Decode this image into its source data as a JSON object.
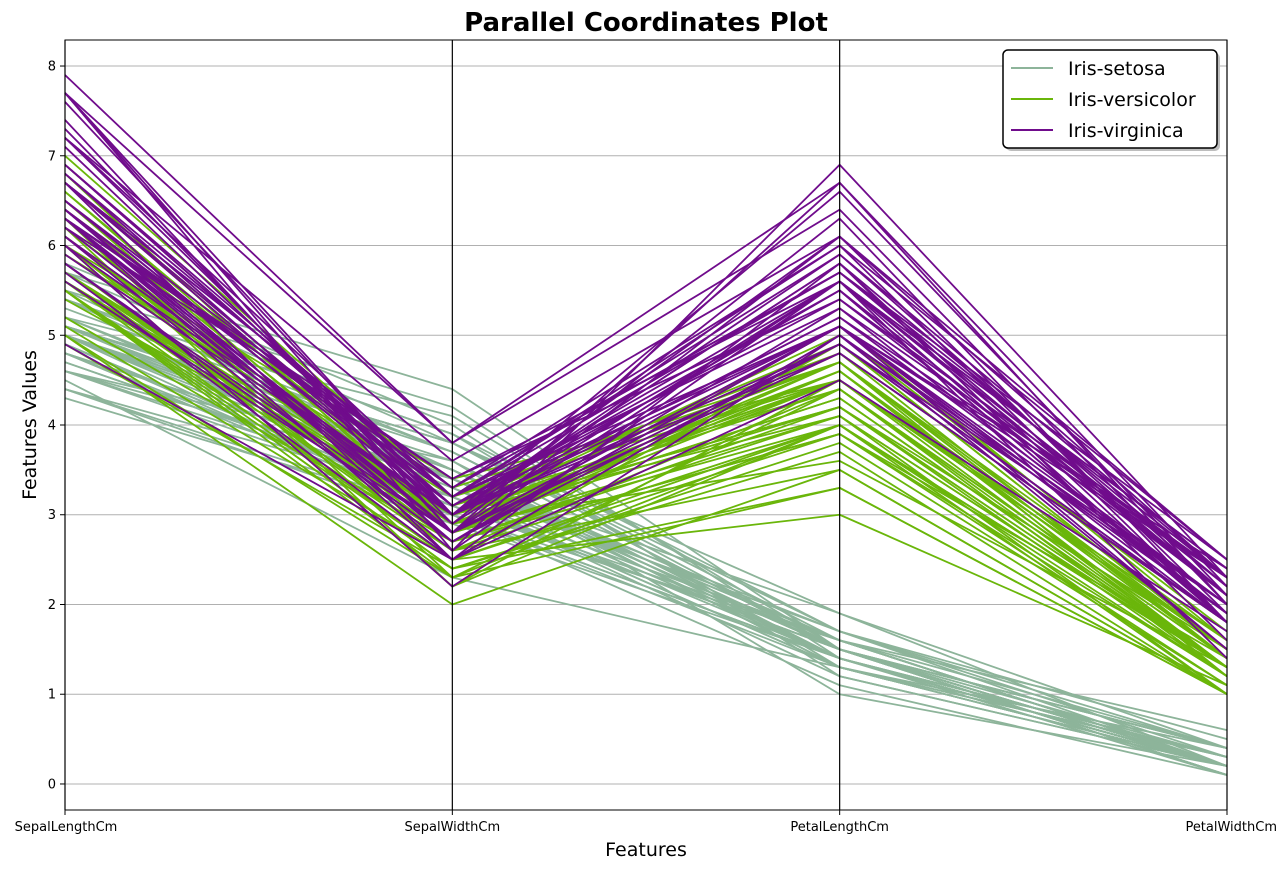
{
  "chart_data": {
    "type": "line",
    "subtype": "parallel-coordinates",
    "title": "Parallel Coordinates Plot",
    "xlabel": "Features",
    "ylabel": "Features Values",
    "categories": [
      "SepalLengthCm",
      "SepalWidthCm",
      "PetalLengthCm",
      "PetalWidthCm"
    ],
    "y_ticks": [
      0,
      1,
      2,
      3,
      4,
      5,
      6,
      7,
      8
    ],
    "ylim": [
      -0.29,
      8.29
    ],
    "grid": true,
    "legend_position": "top-right",
    "colors": {
      "Iris-setosa": "#8db49a",
      "Iris-versicolor": "#6ab60a",
      "Iris-virginica": "#700c8c"
    },
    "series": [
      {
        "name": "Iris-setosa",
        "rows": [
          [
            5.1,
            3.5,
            1.4,
            0.2
          ],
          [
            4.9,
            3.0,
            1.4,
            0.2
          ],
          [
            4.7,
            3.2,
            1.3,
            0.2
          ],
          [
            4.6,
            3.1,
            1.5,
            0.2
          ],
          [
            5.0,
            3.6,
            1.4,
            0.2
          ],
          [
            5.4,
            3.9,
            1.7,
            0.4
          ],
          [
            4.6,
            3.4,
            1.4,
            0.3
          ],
          [
            5.0,
            3.4,
            1.5,
            0.2
          ],
          [
            4.4,
            2.9,
            1.4,
            0.2
          ],
          [
            4.9,
            3.1,
            1.5,
            0.1
          ],
          [
            5.4,
            3.7,
            1.5,
            0.2
          ],
          [
            4.8,
            3.4,
            1.6,
            0.2
          ],
          [
            4.8,
            3.0,
            1.4,
            0.1
          ],
          [
            4.3,
            3.0,
            1.1,
            0.1
          ],
          [
            5.8,
            4.0,
            1.2,
            0.2
          ],
          [
            5.7,
            4.4,
            1.5,
            0.4
          ],
          [
            5.4,
            3.9,
            1.3,
            0.4
          ],
          [
            5.1,
            3.5,
            1.4,
            0.3
          ],
          [
            5.7,
            3.8,
            1.7,
            0.3
          ],
          [
            5.1,
            3.8,
            1.5,
            0.3
          ],
          [
            5.4,
            3.4,
            1.7,
            0.2
          ],
          [
            5.1,
            3.7,
            1.5,
            0.4
          ],
          [
            4.6,
            3.6,
            1.0,
            0.2
          ],
          [
            5.1,
            3.3,
            1.7,
            0.5
          ],
          [
            4.8,
            3.4,
            1.9,
            0.2
          ],
          [
            5.0,
            3.0,
            1.6,
            0.2
          ],
          [
            5.0,
            3.4,
            1.6,
            0.4
          ],
          [
            5.2,
            3.5,
            1.5,
            0.2
          ],
          [
            5.2,
            3.4,
            1.4,
            0.2
          ],
          [
            4.7,
            3.2,
            1.6,
            0.2
          ],
          [
            4.8,
            3.1,
            1.6,
            0.2
          ],
          [
            5.4,
            3.4,
            1.5,
            0.4
          ],
          [
            5.2,
            4.1,
            1.5,
            0.1
          ],
          [
            5.5,
            4.2,
            1.4,
            0.2
          ],
          [
            4.9,
            3.1,
            1.5,
            0.1
          ],
          [
            5.0,
            3.2,
            1.2,
            0.2
          ],
          [
            5.5,
            3.5,
            1.3,
            0.2
          ],
          [
            4.9,
            3.1,
            1.5,
            0.1
          ],
          [
            4.4,
            3.0,
            1.3,
            0.2
          ],
          [
            5.1,
            3.4,
            1.5,
            0.2
          ],
          [
            5.0,
            3.5,
            1.3,
            0.3
          ],
          [
            4.5,
            2.3,
            1.3,
            0.3
          ],
          [
            4.4,
            3.2,
            1.3,
            0.2
          ],
          [
            5.0,
            3.5,
            1.6,
            0.6
          ],
          [
            5.1,
            3.8,
            1.9,
            0.4
          ],
          [
            4.8,
            3.0,
            1.4,
            0.3
          ],
          [
            5.1,
            3.8,
            1.6,
            0.2
          ],
          [
            4.6,
            3.2,
            1.4,
            0.2
          ],
          [
            5.3,
            3.7,
            1.5,
            0.2
          ],
          [
            5.0,
            3.3,
            1.4,
            0.2
          ]
        ]
      },
      {
        "name": "Iris-versicolor",
        "rows": [
          [
            7.0,
            3.2,
            4.7,
            1.4
          ],
          [
            6.4,
            3.2,
            4.5,
            1.5
          ],
          [
            6.9,
            3.1,
            4.9,
            1.5
          ],
          [
            5.5,
            2.3,
            4.0,
            1.3
          ],
          [
            6.5,
            2.8,
            4.6,
            1.5
          ],
          [
            5.7,
            2.8,
            4.5,
            1.3
          ],
          [
            6.3,
            3.3,
            4.7,
            1.6
          ],
          [
            4.9,
            2.4,
            3.3,
            1.0
          ],
          [
            6.6,
            2.9,
            4.6,
            1.3
          ],
          [
            5.2,
            2.7,
            3.9,
            1.4
          ],
          [
            5.0,
            2.0,
            3.5,
            1.0
          ],
          [
            5.9,
            3.0,
            4.2,
            1.5
          ],
          [
            6.0,
            2.2,
            4.0,
            1.0
          ],
          [
            6.1,
            2.9,
            4.7,
            1.4
          ],
          [
            5.6,
            2.9,
            3.6,
            1.3
          ],
          [
            6.7,
            3.1,
            4.4,
            1.4
          ],
          [
            5.6,
            3.0,
            4.5,
            1.5
          ],
          [
            5.8,
            2.7,
            4.1,
            1.0
          ],
          [
            6.2,
            2.2,
            4.5,
            1.5
          ],
          [
            5.6,
            2.5,
            3.9,
            1.1
          ],
          [
            5.9,
            3.2,
            4.8,
            1.8
          ],
          [
            6.1,
            2.8,
            4.0,
            1.3
          ],
          [
            6.3,
            2.5,
            4.9,
            1.5
          ],
          [
            6.1,
            2.8,
            4.7,
            1.2
          ],
          [
            6.4,
            2.9,
            4.3,
            1.3
          ],
          [
            6.6,
            3.0,
            4.4,
            1.4
          ],
          [
            6.8,
            2.8,
            4.8,
            1.4
          ],
          [
            6.7,
            3.0,
            5.0,
            1.7
          ],
          [
            6.0,
            2.9,
            4.5,
            1.5
          ],
          [
            5.7,
            2.6,
            3.5,
            1.0
          ],
          [
            5.5,
            2.4,
            3.8,
            1.1
          ],
          [
            5.5,
            2.4,
            3.7,
            1.0
          ],
          [
            5.8,
            2.7,
            3.9,
            1.2
          ],
          [
            6.0,
            2.7,
            5.1,
            1.6
          ],
          [
            5.4,
            3.0,
            4.5,
            1.5
          ],
          [
            6.0,
            3.4,
            4.5,
            1.6
          ],
          [
            6.7,
            3.1,
            4.7,
            1.5
          ],
          [
            6.3,
            2.3,
            4.4,
            1.3
          ],
          [
            5.6,
            3.0,
            4.1,
            1.3
          ],
          [
            5.5,
            2.5,
            4.0,
            1.3
          ],
          [
            5.5,
            2.6,
            4.4,
            1.2
          ],
          [
            6.1,
            3.0,
            4.6,
            1.4
          ],
          [
            5.8,
            2.6,
            4.0,
            1.2
          ],
          [
            5.0,
            2.3,
            3.3,
            1.0
          ],
          [
            5.6,
            2.7,
            4.2,
            1.3
          ],
          [
            5.7,
            3.0,
            4.2,
            1.2
          ],
          [
            5.7,
            2.9,
            4.2,
            1.3
          ],
          [
            6.2,
            2.9,
            4.3,
            1.3
          ],
          [
            5.1,
            2.5,
            3.0,
            1.1
          ],
          [
            5.7,
            2.8,
            4.1,
            1.3
          ]
        ]
      },
      {
        "name": "Iris-virginica",
        "rows": [
          [
            6.3,
            3.3,
            6.0,
            2.5
          ],
          [
            5.8,
            2.7,
            5.1,
            1.9
          ],
          [
            7.1,
            3.0,
            5.9,
            2.1
          ],
          [
            6.3,
            2.9,
            5.6,
            1.8
          ],
          [
            6.5,
            3.0,
            5.8,
            2.2
          ],
          [
            7.6,
            3.0,
            6.6,
            2.1
          ],
          [
            4.9,
            2.5,
            4.5,
            1.7
          ],
          [
            7.3,
            2.9,
            6.3,
            1.8
          ],
          [
            6.7,
            2.5,
            5.8,
            1.8
          ],
          [
            7.2,
            3.6,
            6.1,
            2.5
          ],
          [
            6.5,
            3.2,
            5.1,
            2.0
          ],
          [
            6.4,
            2.7,
            5.3,
            1.9
          ],
          [
            6.8,
            3.0,
            5.5,
            2.1
          ],
          [
            5.7,
            2.5,
            5.0,
            2.0
          ],
          [
            5.8,
            2.8,
            5.1,
            2.4
          ],
          [
            6.4,
            3.2,
            5.3,
            2.3
          ],
          [
            6.5,
            3.0,
            5.5,
            1.8
          ],
          [
            7.7,
            3.8,
            6.7,
            2.2
          ],
          [
            7.7,
            2.6,
            6.9,
            2.3
          ],
          [
            6.0,
            2.2,
            5.0,
            1.5
          ],
          [
            6.9,
            3.2,
            5.7,
            2.3
          ],
          [
            5.6,
            2.8,
            4.9,
            2.0
          ],
          [
            7.7,
            2.8,
            6.7,
            2.0
          ],
          [
            6.3,
            2.7,
            4.9,
            1.8
          ],
          [
            6.7,
            3.3,
            5.7,
            2.1
          ],
          [
            7.2,
            3.2,
            6.0,
            1.8
          ],
          [
            6.2,
            2.8,
            4.8,
            1.8
          ],
          [
            6.1,
            3.0,
            4.9,
            1.8
          ],
          [
            6.4,
            2.8,
            5.6,
            2.1
          ],
          [
            7.2,
            3.0,
            5.8,
            1.6
          ],
          [
            7.4,
            2.8,
            6.1,
            1.9
          ],
          [
            7.9,
            3.8,
            6.4,
            2.0
          ],
          [
            6.4,
            2.8,
            5.6,
            2.2
          ],
          [
            6.3,
            2.8,
            5.1,
            1.5
          ],
          [
            6.1,
            2.6,
            5.6,
            1.4
          ],
          [
            7.7,
            3.0,
            6.1,
            2.3
          ],
          [
            6.3,
            3.4,
            5.6,
            2.4
          ],
          [
            6.4,
            3.1,
            5.5,
            1.8
          ],
          [
            6.0,
            3.0,
            4.8,
            1.8
          ],
          [
            6.9,
            3.1,
            5.4,
            2.1
          ],
          [
            6.7,
            3.1,
            5.6,
            2.4
          ],
          [
            6.9,
            3.1,
            5.1,
            2.3
          ],
          [
            5.8,
            2.7,
            5.1,
            1.9
          ],
          [
            6.8,
            3.2,
            5.9,
            2.3
          ],
          [
            6.7,
            3.3,
            5.7,
            2.5
          ],
          [
            6.7,
            3.0,
            5.2,
            2.3
          ],
          [
            6.3,
            2.5,
            5.0,
            1.9
          ],
          [
            6.5,
            3.0,
            5.2,
            2.0
          ],
          [
            6.2,
            3.4,
            5.4,
            2.3
          ],
          [
            5.9,
            3.0,
            5.1,
            1.8
          ]
        ]
      }
    ]
  }
}
